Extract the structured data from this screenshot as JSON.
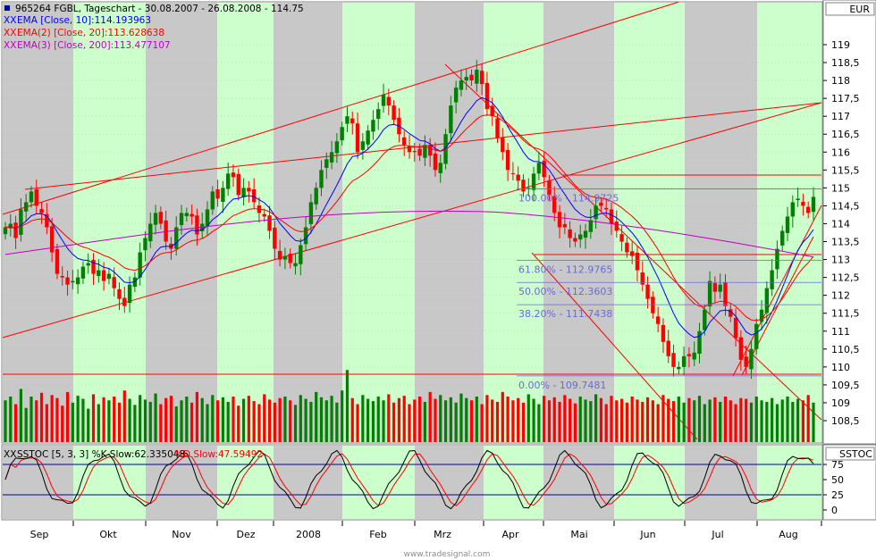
{
  "chart_data": [
    {
      "type": "candlestick",
      "title": "965264 FGBL, Tageschart - 30.08.2007 - 26.08.2008 - 114.75",
      "currency": "EUR",
      "ylim": [
        108,
        120
      ],
      "y_ticks": [
        "119",
        "118,5",
        "118",
        "117,5",
        "117",
        "116,5",
        "116",
        "115,5",
        "115",
        "114,5",
        "114",
        "113,5",
        "113",
        "112,5",
        "112",
        "111,5",
        "111",
        "110,5",
        "110",
        "109,5",
        "109",
        "108,5"
      ],
      "x_months": [
        "Sep",
        "Okt",
        "Nov",
        "Dez",
        "2008",
        "Feb",
        "Mrz",
        "Apr",
        "Mai",
        "Jun",
        "Jul",
        "Aug"
      ],
      "legend": [
        {
          "text": "EMA [Close, 10]:114.193963",
          "color": "#0000ff"
        },
        {
          "text": "EMA(2) [Close, 20]:113.628638",
          "color": "#ff0000"
        },
        {
          "text": "EMA(3) [Close, 200]:113.477107",
          "color": "#c000c0"
        }
      ],
      "fibonacci": [
        {
          "label": "100.00% - 114.9725",
          "value": 114.97
        },
        {
          "label": "61.80% - 112.9765",
          "value": 112.98
        },
        {
          "label": "50.00% - 112.3603",
          "value": 112.36
        },
        {
          "label": "38.20% - 111.7438",
          "value": 111.74
        },
        {
          "label": "0.00% - 109.7481",
          "value": 109.75
        }
      ],
      "series_close": [
        113.9,
        114.0,
        113.6,
        114.4,
        114.6,
        114.9,
        114.5,
        114.3,
        113.9,
        113.2,
        112.6,
        112.5,
        112.3,
        112.4,
        112.5,
        112.8,
        112.9,
        112.6,
        112.7,
        112.4,
        112.6,
        112.2,
        111.9,
        111.7,
        112.3,
        112.5,
        113.2,
        113.6,
        114.0,
        114.3,
        114.0,
        113.5,
        113.3,
        113.9,
        114.3,
        114.3,
        114.2,
        113.7,
        114.0,
        114.4,
        114.9,
        114.7,
        115.0,
        115.4,
        115.3,
        114.8,
        115.0,
        114.9,
        114.6,
        114.3,
        114.2,
        113.8,
        113.3,
        113.0,
        113.1,
        112.9,
        112.9,
        113.4,
        113.9,
        114.6,
        115.0,
        115.5,
        115.8,
        116.0,
        116.3,
        116.7,
        117.0,
        116.8,
        116.0,
        116.3,
        116.6,
        116.9,
        117.2,
        117.6,
        117.3,
        116.9,
        116.5,
        116.2,
        116.0,
        116.0,
        115.9,
        116.2,
        115.9,
        115.5,
        115.7,
        116.5,
        117.3,
        117.8,
        118.0,
        118.1,
        118.0,
        118.3,
        117.9,
        117.2,
        117.0,
        116.4,
        116.0,
        115.5,
        115.4,
        115.2,
        114.9,
        115.0,
        115.4,
        115.7,
        115.3,
        114.8,
        114.3,
        113.9,
        113.9,
        113.6,
        113.5,
        113.7,
        113.8,
        114.1,
        114.5,
        114.5,
        114.4,
        114.0,
        113.8,
        113.5,
        113.2,
        113.1,
        112.7,
        112.3,
        111.9,
        111.5,
        111.2,
        110.7,
        110.3,
        110.0,
        110.0,
        110.3,
        110.3,
        110.4,
        111.0,
        111.6,
        112.4,
        112.1,
        112.3,
        111.7,
        111.4,
        110.8,
        110.2,
        110.0,
        110.5,
        111.2,
        111.6,
        112.2,
        112.7,
        113.3,
        113.8,
        114.2,
        114.6,
        114.7,
        114.5,
        114.3,
        114.75
      ],
      "volume_scale": [
        0.55,
        0.6,
        0.5,
        0.7,
        0.45,
        0.6,
        0.55,
        0.65,
        0.5,
        0.62,
        0.58,
        0.48,
        0.66,
        0.52,
        0.61,
        0.57,
        0.44,
        0.63,
        0.5,
        0.59,
        0.55,
        0.6,
        0.52,
        0.68,
        0.57,
        0.49,
        0.62,
        0.56,
        0.53,
        0.64,
        0.5,
        0.58,
        0.61,
        0.47,
        0.55,
        0.6,
        0.52,
        0.66,
        0.58,
        0.5,
        0.62,
        0.55,
        0.59,
        0.53,
        0.6,
        0.48,
        0.57,
        0.61,
        0.54,
        0.5,
        0.63,
        0.56,
        0.52,
        0.58,
        0.6,
        0.55,
        0.49,
        0.62,
        0.57,
        0.53,
        0.66,
        0.59,
        0.55,
        0.61,
        0.52,
        0.68,
        0.95,
        0.58,
        0.5,
        0.62,
        0.57,
        0.54,
        0.6,
        0.55,
        0.63,
        0.52,
        0.58,
        0.61,
        0.5,
        0.56,
        0.6,
        0.53,
        0.66,
        0.57,
        0.62,
        0.55,
        0.59,
        0.52,
        0.64,
        0.58,
        0.55,
        0.6,
        0.5,
        0.62,
        0.56,
        0.53,
        0.66,
        0.6,
        0.55,
        0.58,
        0.52,
        0.63,
        0.57,
        0.5,
        0.61,
        0.55,
        0.59,
        0.53,
        0.62,
        0.57,
        0.51,
        0.6,
        0.56,
        0.54,
        0.63,
        0.58,
        0.5,
        0.61,
        0.55,
        0.57,
        0.52,
        0.6,
        0.56,
        0.53,
        0.59,
        0.55,
        0.5,
        0.62,
        0.57,
        0.54,
        0.6,
        0.52,
        0.58,
        0.55,
        0.61,
        0.5,
        0.56,
        0.59,
        0.53,
        0.6,
        0.55,
        0.5,
        0.58,
        0.57,
        0.52,
        0.6,
        0.55,
        0.53,
        0.58,
        0.5,
        0.56,
        0.6,
        0.53,
        0.57,
        0.55,
        0.62,
        0.52,
        0.58,
        0.8
      ]
    },
    {
      "type": "line",
      "title": "SSTOC [5, 3, 3] %K Slow:62.335048 %D Slow:47.59492",
      "label": "SSTOC",
      "legend": [
        {
          "text": "SSTOC [5, 3, 3] %K Slow:62.335048",
          "color": "#000000"
        },
        {
          "text": "%D Slow:47.59492",
          "color": "#ff0000"
        }
      ],
      "ylim": [
        0,
        100
      ],
      "y_ticks": [
        "75",
        "50",
        "25",
        "0"
      ]
    }
  ],
  "watermark": "www.tradesignal.com",
  "colors": {
    "band_green": "#ccffcc",
    "band_gray": "#c8c8c8",
    "up": "#008000",
    "down": "#ff0000",
    "ema10": "#0000ff",
    "ema20": "#ff0000",
    "ema200": "#c000c0",
    "fibo": "#6a6ad8"
  }
}
